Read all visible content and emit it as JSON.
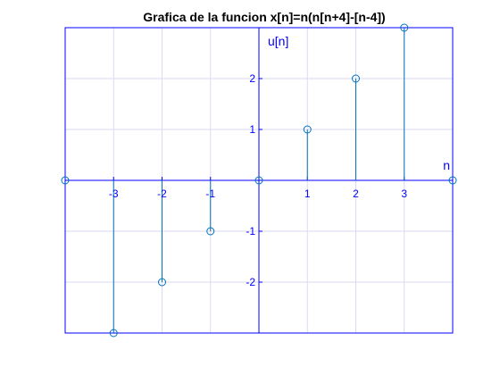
{
  "chart_data": {
    "type": "stem",
    "title": "Grafica de la funcion x[n]=n(n[n+4]-[n-4])",
    "xlabel": "n",
    "ylabel": "u[n]",
    "xlim": [
      -4,
      4
    ],
    "ylim": [
      -3,
      3
    ],
    "grid": true,
    "axes_location": "origin",
    "x": [
      -4,
      -3,
      -2,
      -1,
      0,
      1,
      2,
      3,
      4
    ],
    "values": [
      0,
      -3,
      -2,
      -1,
      0,
      1,
      2,
      3,
      0
    ],
    "x_ticks": [
      -3,
      -2,
      -1,
      1,
      2,
      3
    ],
    "x_tick_labels": [
      "-3",
      "-2",
      "-1",
      "1",
      "2",
      "3"
    ],
    "y_ticks": [
      -2,
      -1,
      1,
      2
    ],
    "y_tick_labels": [
      "-2",
      "-1",
      "1",
      "2"
    ],
    "colors": {
      "axes": "#0000ff",
      "stem": "#0072bd",
      "grid": "#dadaf2",
      "text": "#000000"
    }
  }
}
